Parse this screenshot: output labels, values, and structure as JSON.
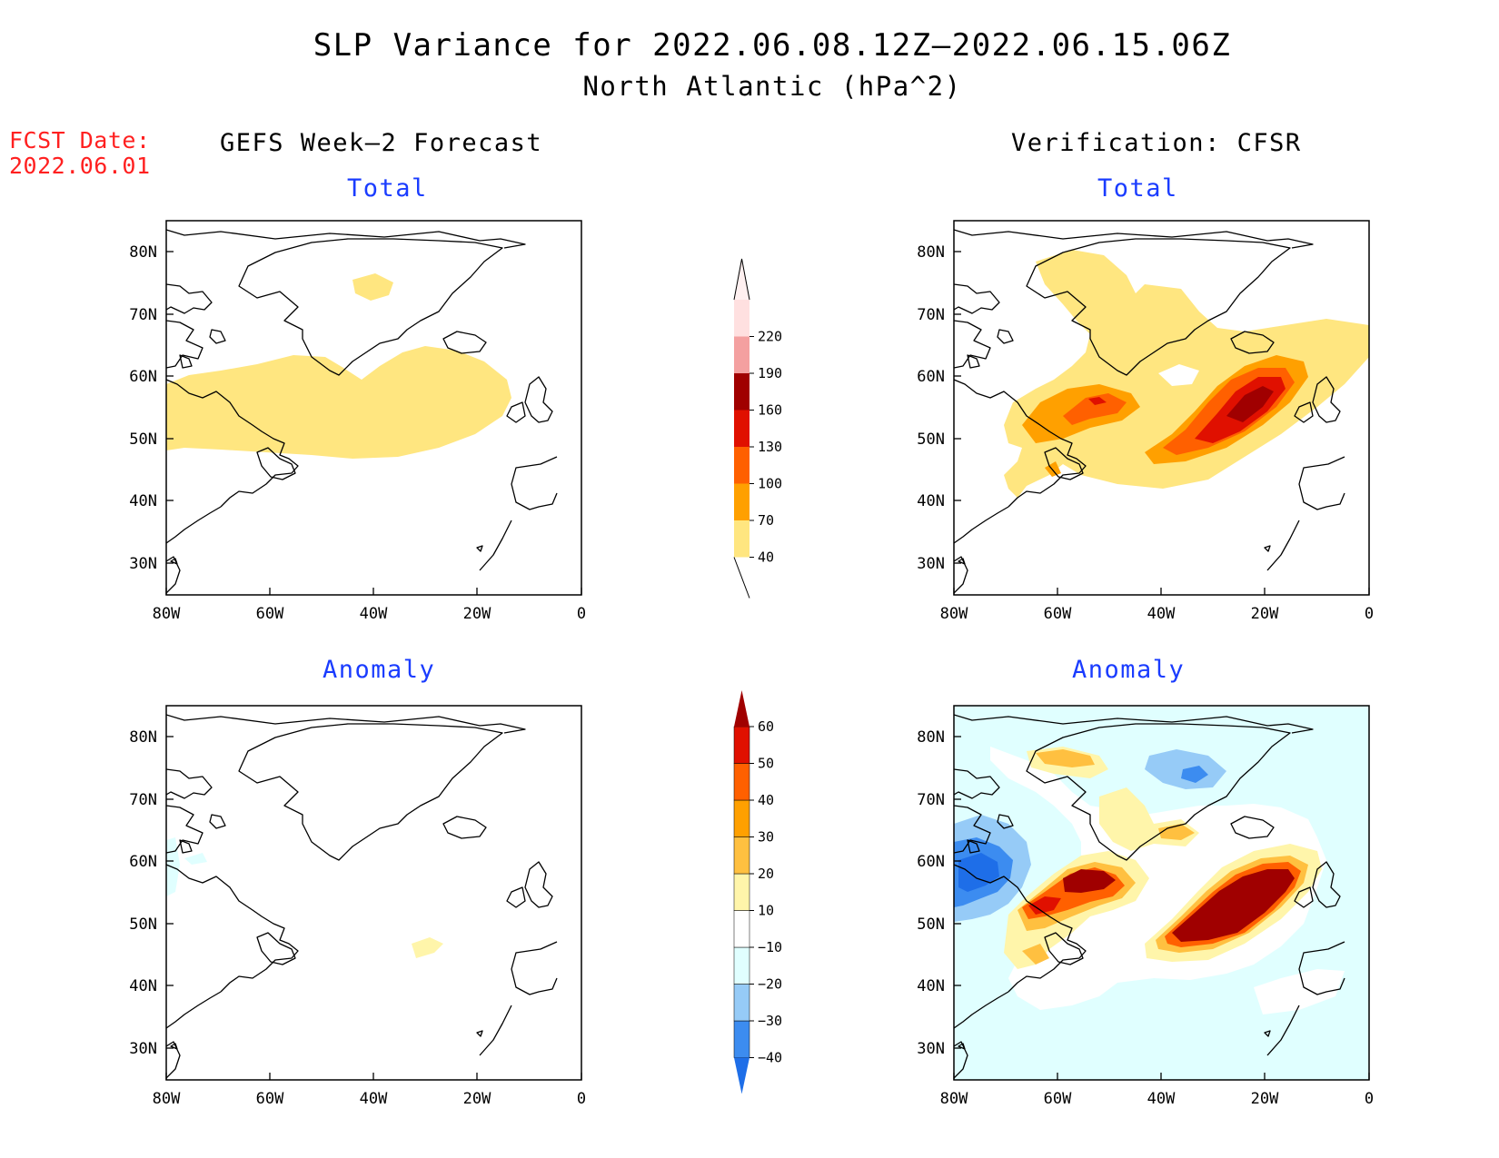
{
  "title": "SLP Variance for 2022.06.08.12Z–2022.06.15.06Z",
  "subtitle": "North Atlantic (hPa^2)",
  "fcst_date": {
    "label": "FCST Date:",
    "value": "2022.06.01"
  },
  "columns": {
    "left": "GEFS Week–2 Forecast",
    "right": "Verification: CFSR"
  },
  "panel_titles": {
    "total": "Total",
    "anomaly": "Anomaly"
  },
  "colors": {
    "title_red": "#ff2020",
    "subtitle_blue": "#1a3cff",
    "total_scale": [
      "#ffe680",
      "#ffa000",
      "#ff6000",
      "#e01000",
      "#a00000",
      "#f4a0a0",
      "#ffe0e0"
    ],
    "anomaly_scale": [
      "#1e6ee8",
      "#3c8cf0",
      "#96cbf7",
      "#e0ffff",
      "#ffffff",
      "#fff5aa",
      "#ffc040",
      "#ffa000",
      "#ff6000",
      "#e01000",
      "#a00000"
    ]
  },
  "chart_data": [
    {
      "type": "map",
      "panel": "forecast-total",
      "title": "Total",
      "xticks": [
        "80W",
        "60W",
        "40W",
        "20W",
        "0"
      ],
      "yticks": [
        "30N",
        "40N",
        "50N",
        "60N",
        "70N",
        "80N"
      ],
      "lon_range": [
        -80,
        0
      ],
      "lat_range": [
        25,
        85
      ],
      "features": [
        {
          "level": "40-70",
          "desc": "broad band 45N-63N from 80W to 12W"
        },
        {
          "level": "40-70",
          "desc": "small area near 75N 40W"
        }
      ]
    },
    {
      "type": "map",
      "panel": "verification-total",
      "title": "Total",
      "xticks": [
        "80W",
        "60W",
        "40W",
        "20W",
        "0"
      ],
      "yticks": [
        "30N",
        "40N",
        "50N",
        "60N",
        "70N",
        "80N"
      ],
      "lon_range": [
        -80,
        0
      ],
      "lat_range": [
        25,
        85
      ],
      "features": [
        {
          "level": "160-190",
          "desc": "maximum near 56N 22W"
        },
        {
          "level": "100-130",
          "desc": "secondary maximum near 57N 52W"
        }
      ]
    },
    {
      "type": "map",
      "panel": "forecast-anomaly",
      "title": "Anomaly",
      "xticks": [
        "80W",
        "60W",
        "40W",
        "20W",
        "0"
      ],
      "yticks": [
        "30N",
        "40N",
        "50N",
        "60N",
        "70N",
        "80N"
      ],
      "lon_range": [
        -80,
        0
      ],
      "lat_range": [
        25,
        85
      ],
      "features": [
        {
          "level": "10-20",
          "desc": "small area near 47N 31W"
        }
      ]
    },
    {
      "type": "map",
      "panel": "verification-anomaly",
      "title": "Anomaly",
      "xticks": [
        "80W",
        "60W",
        "40W",
        "20W",
        "0"
      ],
      "yticks": [
        "30N",
        "40N",
        "50N",
        "60N",
        "70N",
        "80N"
      ],
      "lon_range": [
        -80,
        0
      ],
      "lat_range": [
        25,
        85
      ],
      "features": [
        {
          "level": ">60",
          "desc": "near 55N 20W and 58N 52W"
        },
        {
          "level": "-30 to -40",
          "desc": "Labrador near 55N 75W"
        },
        {
          "level": "-30",
          "desc": "Greenland near 77N 42W"
        }
      ]
    }
  ],
  "colorbars": {
    "total": {
      "labels": [
        "40",
        "70",
        "100",
        "130",
        "160",
        "190",
        "220"
      ]
    },
    "anomaly": {
      "labels": [
        "−40",
        "−30",
        "−20",
        "−10",
        "10",
        "20",
        "30",
        "40",
        "50",
        "60"
      ]
    }
  }
}
